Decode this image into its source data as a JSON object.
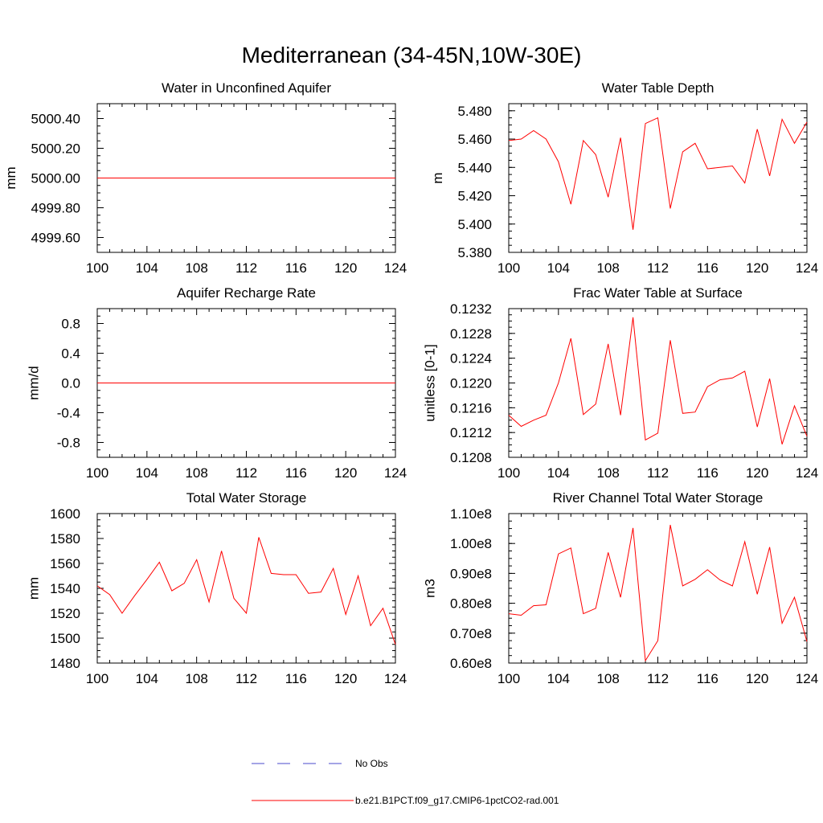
{
  "figure": {
    "title": "Mediterranean (34-45N,10W-30E)",
    "legend": [
      {
        "label": "No Obs",
        "style": "dashed",
        "color": "#4a4acc"
      },
      {
        "label": "b.e21.B1PCT.f09_g17.CMIP6-1pctCO2-rad.001",
        "style": "solid",
        "color": "#ff0000"
      }
    ]
  },
  "chart_data": [
    {
      "type": "line",
      "title": "Water in Unconfined Aquifer",
      "ylabel": "mm",
      "xlabel": "",
      "xlim": [
        100,
        124
      ],
      "ylim": [
        4999.5,
        5000.5
      ],
      "xticks": [
        100,
        104,
        108,
        112,
        116,
        120,
        124
      ],
      "xtick_labels": [
        "100",
        "104",
        "108",
        "112",
        "116",
        "120",
        "124"
      ],
      "yticks": [
        4999.6,
        4999.8,
        5000.0,
        5000.2,
        5000.4
      ],
      "ytick_labels": [
        "4999.60",
        "4999.80",
        "5000.00",
        "5000.20",
        "5000.40"
      ],
      "series": [
        {
          "name": "b.e21.B1PCT.f09_g17.CMIP6-1pctCO2-rad.001",
          "color": "#ff0000",
          "x": [
            100,
            101,
            102,
            103,
            104,
            105,
            106,
            107,
            108,
            109,
            110,
            111,
            112,
            113,
            114,
            115,
            116,
            117,
            118,
            119,
            120,
            121,
            122,
            123,
            124
          ],
          "values": [
            5000,
            5000,
            5000,
            5000,
            5000,
            5000,
            5000,
            5000,
            5000,
            5000,
            5000,
            5000,
            5000,
            5000,
            5000,
            5000,
            5000,
            5000,
            5000,
            5000,
            5000,
            5000,
            5000,
            5000,
            5000
          ]
        }
      ]
    },
    {
      "type": "line",
      "title": "Water Table Depth",
      "ylabel": "m",
      "xlabel": "",
      "xlim": [
        100,
        124
      ],
      "ylim": [
        5.38,
        5.485
      ],
      "xticks": [
        100,
        104,
        108,
        112,
        116,
        120,
        124
      ],
      "xtick_labels": [
        "100",
        "104",
        "108",
        "112",
        "116",
        "120",
        "124"
      ],
      "yticks": [
        5.38,
        5.4,
        5.42,
        5.44,
        5.46,
        5.48
      ],
      "ytick_labels": [
        "5.380",
        "5.400",
        "5.420",
        "5.440",
        "5.460",
        "5.480"
      ],
      "series": [
        {
          "name": "b.e21.B1PCT.f09_g17.CMIP6-1pctCO2-rad.001",
          "color": "#ff0000",
          "x": [
            100,
            101,
            102,
            103,
            104,
            105,
            106,
            107,
            108,
            109,
            110,
            111,
            112,
            113,
            114,
            115,
            116,
            117,
            118,
            119,
            120,
            121,
            122,
            123,
            124
          ],
          "values": [
            5.459,
            5.46,
            5.466,
            5.46,
            5.444,
            5.414,
            5.459,
            5.449,
            5.419,
            5.461,
            5.396,
            5.471,
            5.475,
            5.411,
            5.451,
            5.457,
            5.439,
            5.44,
            5.441,
            5.429,
            5.467,
            5.434,
            5.474,
            5.457,
            5.472
          ]
        }
      ]
    },
    {
      "type": "line",
      "title": "Aquifer Recharge Rate",
      "ylabel": "mm/d",
      "xlabel": "",
      "xlim": [
        100,
        124
      ],
      "ylim": [
        -1.0,
        1.0
      ],
      "xticks": [
        100,
        104,
        108,
        112,
        116,
        120,
        124
      ],
      "xtick_labels": [
        "100",
        "104",
        "108",
        "112",
        "116",
        "120",
        "124"
      ],
      "yticks": [
        -0.8,
        -0.4,
        0.0,
        0.4,
        0.8
      ],
      "ytick_labels": [
        "-0.8",
        "-0.4",
        "0.0",
        "0.4",
        "0.8"
      ],
      "series": [
        {
          "name": "b.e21.B1PCT.f09_g17.CMIP6-1pctCO2-rad.001",
          "color": "#ff0000",
          "x": [
            100,
            101,
            102,
            103,
            104,
            105,
            106,
            107,
            108,
            109,
            110,
            111,
            112,
            113,
            114,
            115,
            116,
            117,
            118,
            119,
            120,
            121,
            122,
            123,
            124
          ],
          "values": [
            0,
            0,
            0,
            0,
            0,
            0,
            0,
            0,
            0,
            0,
            0,
            0,
            0,
            0,
            0,
            0,
            0,
            0,
            0,
            0,
            0,
            0,
            0,
            0,
            0
          ]
        }
      ]
    },
    {
      "type": "line",
      "title": "Frac Water Table at Surface",
      "ylabel": "unitless [0-1]",
      "xlabel": "",
      "xlim": [
        100,
        124
      ],
      "ylim": [
        0.1208,
        0.1232
      ],
      "xticks": [
        100,
        104,
        108,
        112,
        116,
        120,
        124
      ],
      "xtick_labels": [
        "100",
        "104",
        "108",
        "112",
        "116",
        "120",
        "124"
      ],
      "yticks": [
        0.1208,
        0.1212,
        0.1216,
        0.122,
        0.1224,
        0.1228,
        0.1232
      ],
      "ytick_labels": [
        "0.1208",
        "0.1212",
        "0.1216",
        "0.1220",
        "0.1224",
        "0.1228",
        "0.1232"
      ],
      "series": [
        {
          "name": "b.e21.B1PCT.f09_g17.CMIP6-1pctCO2-rad.001",
          "color": "#ff0000",
          "x": [
            100,
            101,
            102,
            103,
            104,
            105,
            106,
            107,
            108,
            109,
            110,
            111,
            112,
            113,
            114,
            115,
            116,
            117,
            118,
            119,
            120,
            121,
            122,
            123,
            124
          ],
          "values": [
            0.12148,
            0.1213,
            0.1214,
            0.12148,
            0.122,
            0.12272,
            0.12149,
            0.12166,
            0.12263,
            0.12148,
            0.12306,
            0.12108,
            0.12119,
            0.12269,
            0.12151,
            0.12153,
            0.12194,
            0.12205,
            0.12208,
            0.12219,
            0.12129,
            0.12207,
            0.12101,
            0.12163,
            0.12114
          ]
        }
      ]
    },
    {
      "type": "line",
      "title": "Total Water Storage",
      "ylabel": "mm",
      "xlabel": "",
      "xlim": [
        100,
        124
      ],
      "ylim": [
        1480,
        1600
      ],
      "xticks": [
        100,
        104,
        108,
        112,
        116,
        120,
        124
      ],
      "xtick_labels": [
        "100",
        "104",
        "108",
        "112",
        "116",
        "120",
        "124"
      ],
      "yticks": [
        1480,
        1500,
        1520,
        1540,
        1560,
        1580,
        1600
      ],
      "ytick_labels": [
        "1480",
        "1500",
        "1520",
        "1540",
        "1560",
        "1580",
        "1600"
      ],
      "series": [
        {
          "name": "b.e21.B1PCT.f09_g17.CMIP6-1pctCO2-rad.001",
          "color": "#ff0000",
          "x": [
            100,
            101,
            102,
            103,
            104,
            105,
            106,
            107,
            108,
            109,
            110,
            111,
            112,
            113,
            114,
            115,
            116,
            117,
            118,
            119,
            120,
            121,
            122,
            123,
            124
          ],
          "values": [
            1542,
            1535,
            1520,
            1534,
            1547,
            1561,
            1538,
            1544,
            1563,
            1529,
            1570,
            1532,
            1520,
            1581,
            1552,
            1551,
            1551,
            1536,
            1537,
            1556,
            1519,
            1550,
            1510,
            1524,
            1495
          ]
        }
      ]
    },
    {
      "type": "line",
      "title": "River Channel Total Water Storage",
      "ylabel": "m3",
      "xlabel": "",
      "xlim": [
        100,
        124
      ],
      "ylim": [
        60000000.0,
        110000000.0
      ],
      "xticks": [
        100,
        104,
        108,
        112,
        116,
        120,
        124
      ],
      "xtick_labels": [
        "100",
        "104",
        "108",
        "112",
        "116",
        "120",
        "124"
      ],
      "yticks": [
        60000000.0,
        70000000.0,
        80000000.0,
        90000000.0,
        100000000.0,
        110000000.0
      ],
      "ytick_labels": [
        "0.60e8",
        "0.70e8",
        "0.80e8",
        "0.90e8",
        "1.00e8",
        "1.10e8"
      ],
      "series": [
        {
          "name": "b.e21.B1PCT.f09_g17.CMIP6-1pctCO2-rad.001",
          "color": "#ff0000",
          "x": [
            100,
            101,
            102,
            103,
            104,
            105,
            106,
            107,
            108,
            109,
            110,
            111,
            112,
            113,
            114,
            115,
            116,
            117,
            118,
            119,
            120,
            121,
            122,
            123,
            124
          ],
          "values": [
            76500000.0,
            76000000.0,
            79200000.0,
            79500000.0,
            96500000.0,
            98500000.0,
            76500000.0,
            78300000.0,
            97000000.0,
            82000000.0,
            105200000.0,
            60800000.0,
            67500000.0,
            106200000.0,
            85800000.0,
            88000000.0,
            91200000.0,
            87800000.0,
            85800000.0,
            100600000.0,
            83000000.0,
            98800000.0,
            73300000.0,
            82000000.0,
            67200000.0
          ]
        }
      ]
    }
  ]
}
